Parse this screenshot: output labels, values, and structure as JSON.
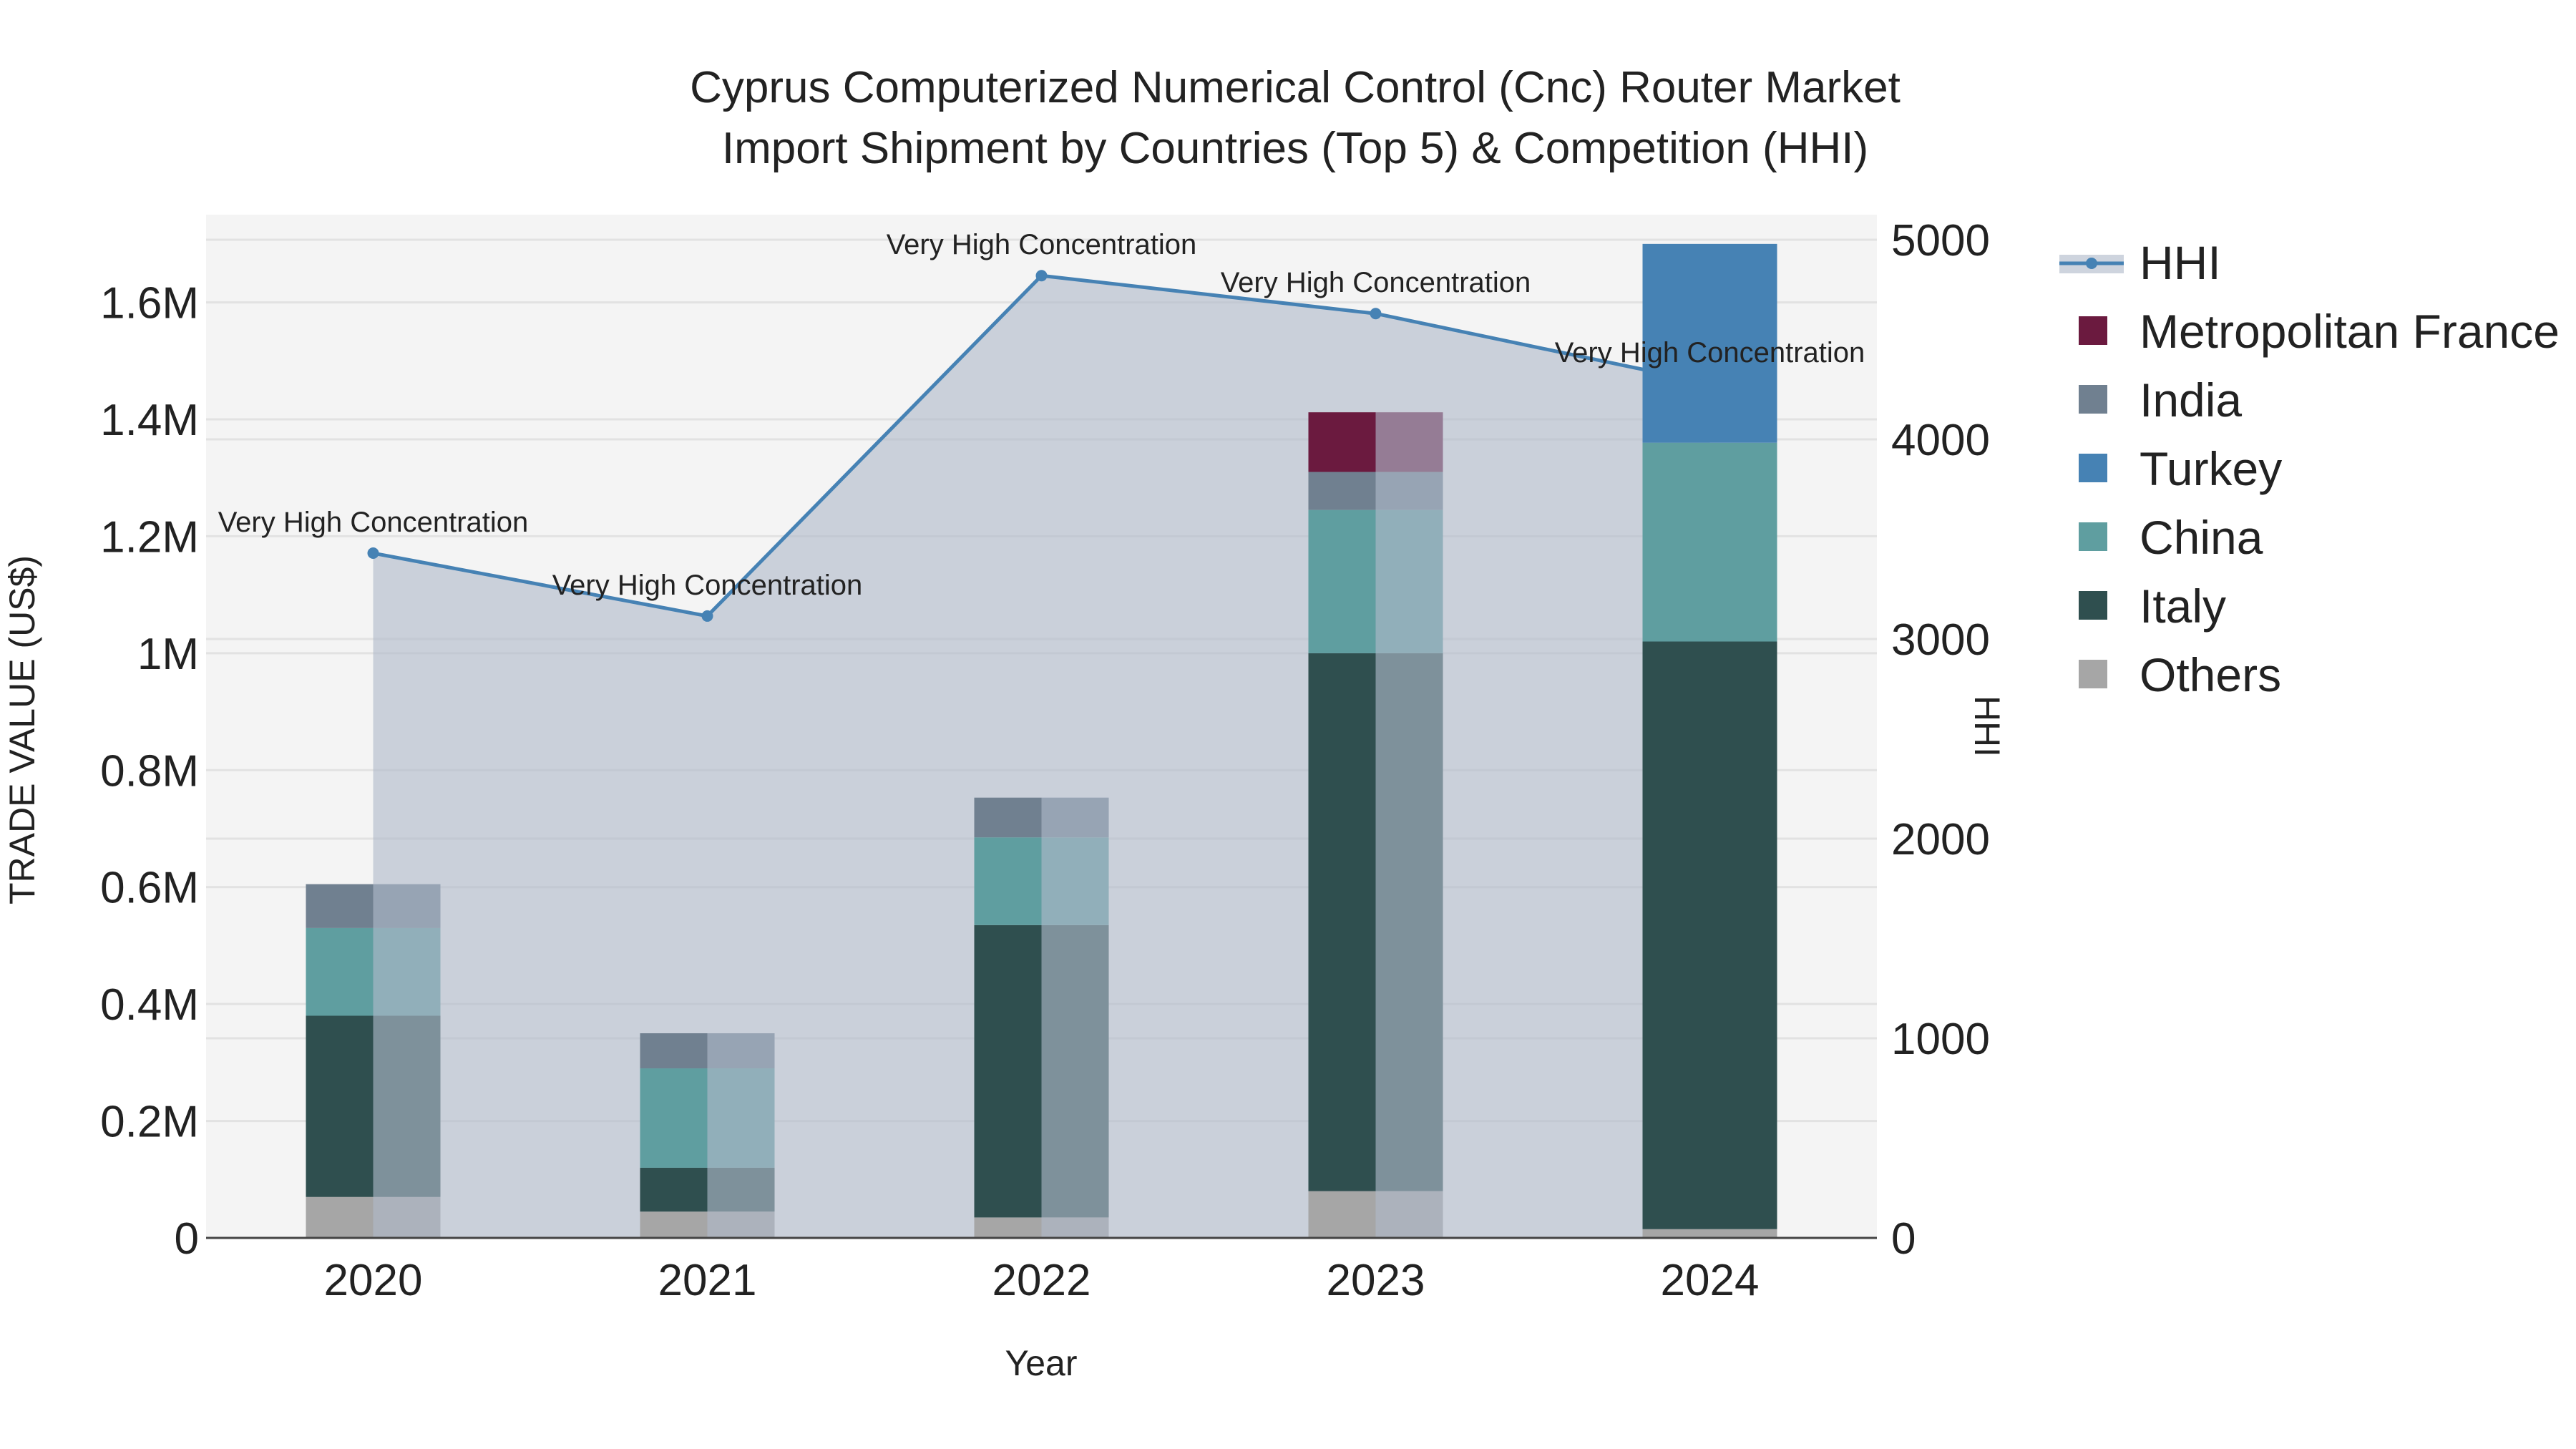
{
  "chart_data": {
    "type": "bar",
    "title_line1": "Cyprus Computerized Numerical Control (Cnc) Router Market",
    "title_line2": "Import Shipment by Countries (Top 5) & Competition (HHI)",
    "xlabel": "Year",
    "ylabel": "TRADE VALUE (US$)",
    "y2label": "HHI",
    "categories": [
      "2020",
      "2021",
      "2022",
      "2023",
      "2024"
    ],
    "ylim": [
      0,
      1750000
    ],
    "y2lim": [
      0,
      5000
    ],
    "y_ticks": [
      {
        "value": 0,
        "label": "0"
      },
      {
        "value": 200000,
        "label": "0.2M"
      },
      {
        "value": 400000,
        "label": "0.4M"
      },
      {
        "value": 600000,
        "label": "0.6M"
      },
      {
        "value": 800000,
        "label": "0.8M"
      },
      {
        "value": 1000000,
        "label": "1M"
      },
      {
        "value": 1200000,
        "label": "1.2M"
      },
      {
        "value": 1400000,
        "label": "1.4M"
      },
      {
        "value": 1600000,
        "label": "1.6M"
      }
    ],
    "y2_ticks": [
      {
        "value": 0,
        "label": "0"
      },
      {
        "value": 1000,
        "label": "1000"
      },
      {
        "value": 2000,
        "label": "2000"
      },
      {
        "value": 3000,
        "label": "3000"
      },
      {
        "value": 4000,
        "label": "4000"
      },
      {
        "value": 5000,
        "label": "5000"
      }
    ],
    "series": [
      {
        "name": "Others",
        "color": "#a6a6a6",
        "values": [
          70000,
          45000,
          35000,
          80000,
          15000
        ]
      },
      {
        "name": "Italy",
        "color": "#2f4f4f",
        "values": [
          310000,
          75000,
          500000,
          920000,
          1005000
        ]
      },
      {
        "name": "China",
        "color": "#5f9ea0",
        "values": [
          150000,
          170000,
          150000,
          245000,
          340000
        ]
      },
      {
        "name": "Turkey",
        "color": "#4682b4",
        "values": [
          0,
          0,
          0,
          0,
          340000
        ]
      },
      {
        "name": "India",
        "color": "#708090",
        "values": [
          75000,
          60000,
          68000,
          65000,
          0
        ]
      },
      {
        "name": "Metropolitan France",
        "color": "#6b1a3f",
        "values": [
          0,
          0,
          0,
          102000,
          0
        ]
      }
    ],
    "hhi": {
      "name": "HHI",
      "color": "#4682b4",
      "values": [
        3430,
        3115,
        4820,
        4630,
        4280
      ],
      "labels": [
        "Very High Concentration",
        "Very High Concentration",
        "Very High Concentration",
        "Very High Concentration",
        "Very High Concentration"
      ]
    },
    "legend": [
      "HHI",
      "Metropolitan France",
      "India",
      "Turkey",
      "China",
      "Italy",
      "Others"
    ]
  }
}
